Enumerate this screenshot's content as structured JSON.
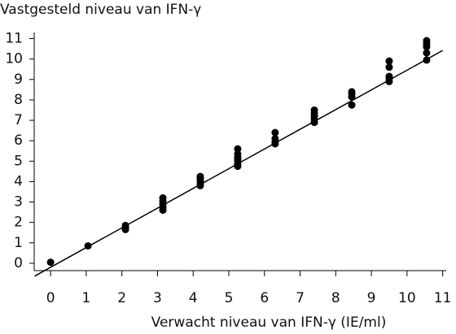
{
  "chart_data": {
    "type": "scatter",
    "ylabel": "Vastgesteld niveau van IFN-γ",
    "xlabel": "Verwacht niveau van IFN-γ (IE/ml)",
    "color": "#000000",
    "x": [
      0,
      1.05,
      2.1,
      2.1,
      2.1,
      3.15,
      3.15,
      3.15,
      3.15,
      3.15,
      4.2,
      4.2,
      4.2,
      4.2,
      4.2,
      5.25,
      5.25,
      5.25,
      5.25,
      5.25,
      5.25,
      5.25,
      6.3,
      6.3,
      6.3,
      6.3,
      7.4,
      7.4,
      7.4,
      7.4,
      7.4,
      8.45,
      8.45,
      8.45,
      8.45,
      9.5,
      9.5,
      9.5,
      9.5,
      9.5,
      10.55,
      10.55,
      10.55,
      10.55,
      10.55
    ],
    "y": [
      0.05,
      0.85,
      1.65,
      1.75,
      1.85,
      2.6,
      2.75,
      2.9,
      3.05,
      3.2,
      3.8,
      3.9,
      4.05,
      4.15,
      4.25,
      4.75,
      4.85,
      5.0,
      5.1,
      5.2,
      5.35,
      5.6,
      5.85,
      5.95,
      6.1,
      6.4,
      6.9,
      7.05,
      7.2,
      7.35,
      7.5,
      7.75,
      8.15,
      8.3,
      8.4,
      8.9,
      9.05,
      9.15,
      9.6,
      9.9,
      9.95,
      10.3,
      10.6,
      10.75,
      10.9
    ],
    "fit_line": {
      "x": [
        -0.45,
        11.0
      ],
      "y": [
        -0.63,
        10.42
      ]
    },
    "xlim": [
      -0.46,
      11.1
    ],
    "ylim": [
      -0.36,
      11.3
    ],
    "xticks": [
      0,
      1,
      2,
      3,
      4,
      5,
      6,
      7,
      8,
      9,
      10,
      11
    ],
    "yticks": [
      0,
      1,
      2,
      3,
      4,
      5,
      6,
      7,
      8,
      9,
      10,
      11
    ]
  }
}
